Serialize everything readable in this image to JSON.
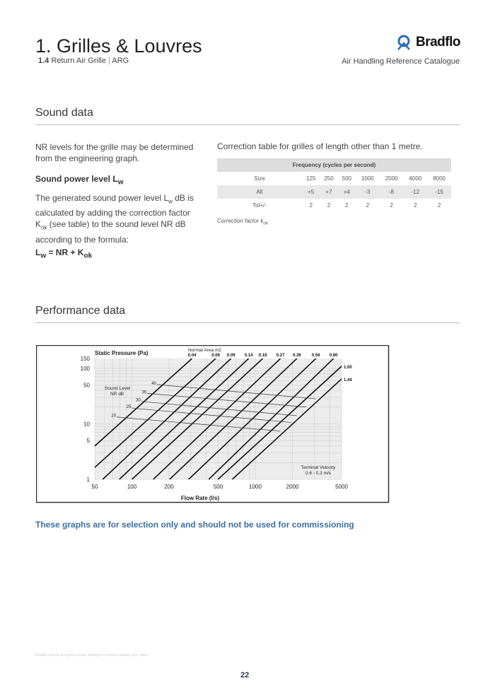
{
  "header": {
    "title": "1. Grilles & Louvres",
    "section_num": "1.4",
    "section_name": "Return Air Grille",
    "divider": "|",
    "code": "ARG",
    "logo_text": "Bradflo",
    "catalogue": "Air Handling Reference Catalogue"
  },
  "sound": {
    "heading": "Sound data",
    "intro": "NR levels for the grille may be determined from the engineering graph.",
    "spl_label": "Sound power level L",
    "spl_sub": "w",
    "para_1": "The generated sound power level L",
    "para_sub1": "w",
    "para_2": " dB is calculated by adding the correction factor K",
    "para_sub2": "ok",
    "para_3": " (see table) to the sound level NR dB according to the formula:",
    "formula_l": "L",
    "formula_lsub": "w",
    "formula_mid": " = NR + K",
    "formula_ksub": "ok",
    "table_caption": "Correction table for grilles of length other than 1 metre.",
    "table_header": "Frequency (cycles per second)",
    "rows": [
      [
        "Size",
        "125",
        "250",
        "500",
        "1000",
        "2000",
        "4000",
        "8000"
      ],
      [
        "All",
        "+5",
        "+7",
        "+4",
        "-3",
        "-8",
        "-12",
        "-15"
      ],
      [
        "Tol+/-",
        "2",
        "2",
        "2",
        "2",
        "2",
        "2",
        "2"
      ]
    ],
    "footnote": "Correction factor k",
    "footnote_sub": "ok"
  },
  "performance": {
    "heading": "Performance data",
    "note": "These graphs are for selection only and should not be used for commissioning"
  },
  "chart_data": {
    "type": "line",
    "xlabel": "Flow Rate (l/s)",
    "ylabel": "Static Pressure (Pa)",
    "xscale": "log",
    "yscale": "log",
    "xlim": [
      50,
      5000
    ],
    "ylim": [
      1,
      150
    ],
    "grid": true,
    "xticks": [
      "50",
      "100",
      "200",
      "500",
      "1000",
      "2000",
      "5000"
    ],
    "xtick_values": [
      50,
      100,
      200,
      500,
      1000,
      2000,
      5000
    ],
    "yticks": [
      "150",
      "100",
      "50",
      "10",
      "5",
      "1"
    ],
    "ytick_values": [
      150,
      100,
      50,
      10,
      5,
      1
    ],
    "area_title": "Normal Area m2",
    "nr_title_1": "Sound Level",
    "nr_title_2": "NR  dB",
    "tv_title": "Terminal Velocity",
    "tv_range": "0.6 - 0.3 m/s",
    "area_series": [
      {
        "name": "0.04",
        "points": [
          [
            25,
            1
          ],
          [
            307,
            150
          ]
        ]
      },
      {
        "name": "0.06",
        "points": [
          [
            39,
            1
          ],
          [
            478,
            150
          ]
        ]
      },
      {
        "name": "0.09",
        "points": [
          [
            58,
            1
          ],
          [
            636,
            150
          ]
        ]
      },
      {
        "name": "0.14",
        "points": [
          [
            79,
            1
          ],
          [
            884,
            150
          ]
        ]
      },
      {
        "name": "0.18",
        "points": [
          [
            100,
            1
          ],
          [
            1150,
            150
          ]
        ]
      },
      {
        "name": "0.27",
        "points": [
          [
            149,
            1
          ],
          [
            1600,
            150
          ]
        ]
      },
      {
        "name": "0.36",
        "points": [
          [
            202,
            1
          ],
          [
            2175,
            150
          ]
        ]
      },
      {
        "name": "0.56",
        "points": [
          [
            288,
            1
          ],
          [
            3100,
            150
          ]
        ]
      },
      {
        "name": "0.80",
        "points": [
          [
            419,
            1
          ],
          [
            4305,
            150
          ]
        ]
      },
      {
        "name": "1.00",
        "points": [
          [
            498,
            1
          ],
          [
            5860,
            150
          ]
        ]
      },
      {
        "name": "1.44",
        "points": [
          [
            650,
            1
          ],
          [
            7580,
            150
          ]
        ]
      }
    ],
    "nr_series": [
      {
        "name": "40",
        "points": [
          [
            182,
            49.6
          ],
          [
            3100,
            28.2
          ]
        ]
      },
      {
        "name": "35",
        "points": [
          [
            152,
            34.4
          ],
          [
            2595,
            20
          ]
        ]
      },
      {
        "name": "30",
        "points": [
          [
            136,
            24.6
          ],
          [
            2175,
            14
          ]
        ]
      },
      {
        "name": "25",
        "points": [
          [
            114,
            18.7
          ],
          [
            1950,
            10.6
          ]
        ]
      },
      {
        "name": "20",
        "points": [
          [
            86,
            12.9
          ],
          [
            1600,
            7.4
          ]
        ]
      }
    ]
  },
  "footer": {
    "disclaimer": "Bradflo reserve the right to make changes to product without prior notice",
    "page": "22"
  }
}
